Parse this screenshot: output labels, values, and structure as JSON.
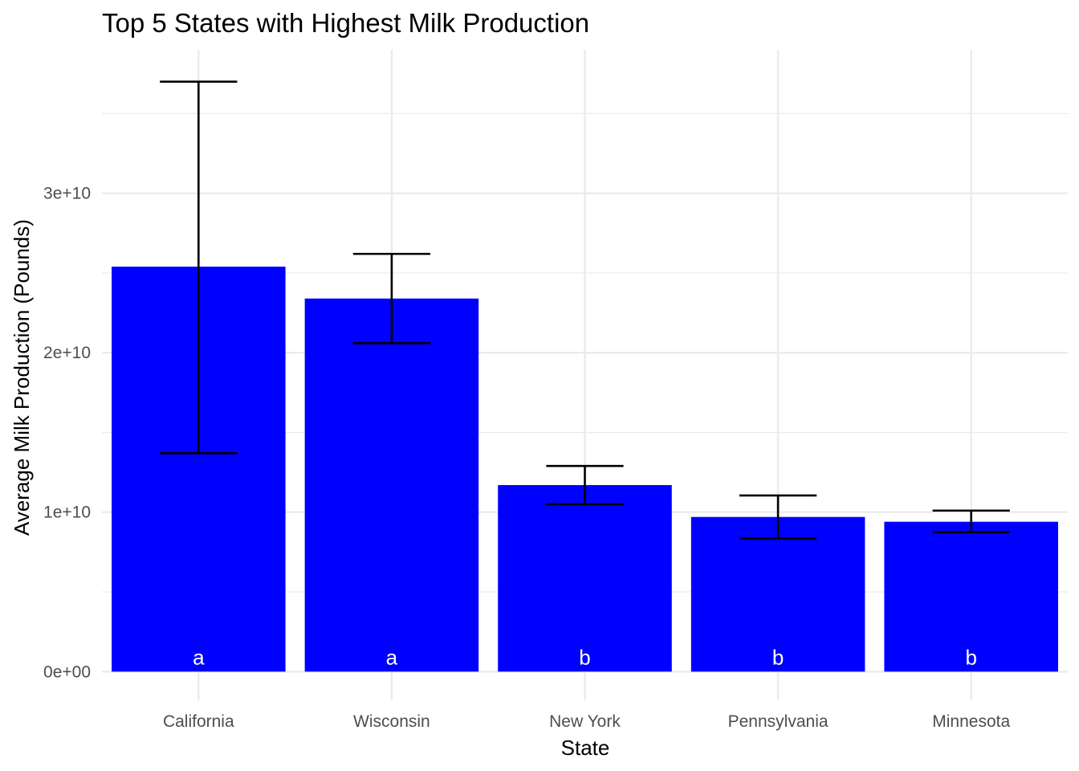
{
  "chart_data": {
    "type": "bar",
    "title": "Top 5 States with Highest Milk Production",
    "xlabel": "State",
    "ylabel": "Average Milk Production (Pounds)",
    "categories": [
      "California",
      "Wisconsin",
      "New York",
      "Pennsylvania",
      "Minnesota"
    ],
    "values": [
      25400000000,
      23400000000,
      11700000000,
      9700000000,
      9400000000
    ],
    "error_low": [
      13700000000,
      20600000000,
      10500000000,
      8350000000,
      8750000000
    ],
    "error_high": [
      37000000000,
      26200000000,
      12900000000,
      11050000000,
      10100000000
    ],
    "group_letters": [
      "a",
      "a",
      "b",
      "b",
      "b"
    ],
    "ylim": [
      -1800000000,
      39000000000
    ],
    "y_ticks": [
      0,
      10000000000,
      20000000000,
      30000000000
    ],
    "y_tick_labels": [
      "0e+00",
      "1e+10",
      "2e+10",
      "3e+10"
    ],
    "y_minor_ticks": [
      5000000000,
      15000000000,
      25000000000,
      35000000000
    ],
    "bar_color": "#0000ff",
    "grid": true,
    "legend": "none"
  }
}
